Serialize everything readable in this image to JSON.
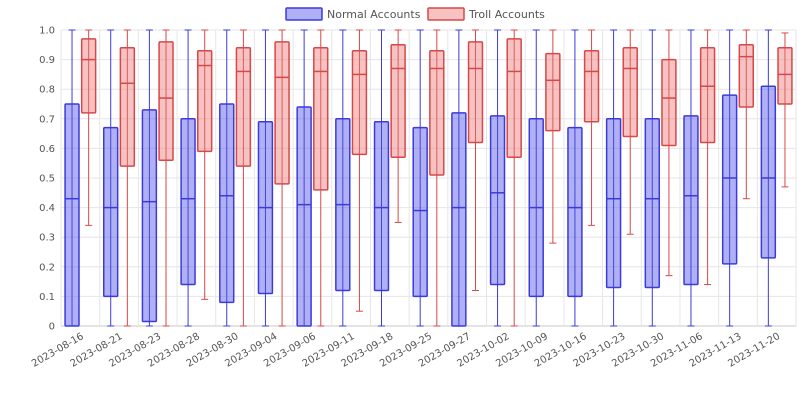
{
  "chart_data": {
    "type": "boxplot",
    "legend_position": "top-center",
    "grid": true,
    "ylim": [
      0,
      1
    ],
    "yticks": [
      "0",
      "0.1",
      "0.2",
      "0.3",
      "0.4",
      "0.5",
      "0.6",
      "0.7",
      "0.8",
      "0.9",
      "1.0"
    ],
    "categories": [
      "2023-08-16",
      "2023-08-21",
      "2023-08-23",
      "2023-08-28",
      "2023-08-30",
      "2023-09-04",
      "2023-09-06",
      "2023-09-11",
      "2023-09-18",
      "2023-09-25",
      "2023-09-27",
      "2023-10-02",
      "2023-10-09",
      "2023-10-16",
      "2023-10-23",
      "2023-10-30",
      "2023-11-06",
      "2023-11-13",
      "2023-11-20"
    ],
    "series": [
      {
        "name": "Normal Accounts",
        "color": "#3b3bdb",
        "fill": "rgba(80,80,230,0.45)",
        "boxes": [
          {
            "min": 0,
            "q1": 0,
            "median": 0.43,
            "q3": 0.75,
            "max": 1.0
          },
          {
            "min": 0,
            "q1": 0.1,
            "median": 0.4,
            "q3": 0.67,
            "max": 1.0
          },
          {
            "min": 0,
            "q1": 0.015,
            "median": 0.42,
            "q3": 0.73,
            "max": 1.0
          },
          {
            "min": 0,
            "q1": 0.14,
            "median": 0.43,
            "q3": 0.7,
            "max": 1.0
          },
          {
            "min": 0,
            "q1": 0.08,
            "median": 0.44,
            "q3": 0.75,
            "max": 1.0
          },
          {
            "min": 0,
            "q1": 0.11,
            "median": 0.4,
            "q3": 0.69,
            "max": 1.0
          },
          {
            "min": 0,
            "q1": 0,
            "median": 0.41,
            "q3": 0.74,
            "max": 1.0
          },
          {
            "min": 0,
            "q1": 0.12,
            "median": 0.41,
            "q3": 0.7,
            "max": 1.0
          },
          {
            "min": 0,
            "q1": 0.12,
            "median": 0.4,
            "q3": 0.69,
            "max": 1.0
          },
          {
            "min": 0,
            "q1": 0.1,
            "median": 0.39,
            "q3": 0.67,
            "max": 1.0
          },
          {
            "min": 0,
            "q1": 0,
            "median": 0.4,
            "q3": 0.72,
            "max": 1.0
          },
          {
            "min": 0,
            "q1": 0.14,
            "median": 0.45,
            "q3": 0.71,
            "max": 1.0
          },
          {
            "min": 0,
            "q1": 0.1,
            "median": 0.4,
            "q3": 0.7,
            "max": 1.0
          },
          {
            "min": 0,
            "q1": 0.1,
            "median": 0.4,
            "q3": 0.67,
            "max": 1.0
          },
          {
            "min": 0,
            "q1": 0.13,
            "median": 0.43,
            "q3": 0.7,
            "max": 1.0
          },
          {
            "min": 0,
            "q1": 0.13,
            "median": 0.43,
            "q3": 0.7,
            "max": 1.0
          },
          {
            "min": 0,
            "q1": 0.14,
            "median": 0.44,
            "q3": 0.71,
            "max": 1.0
          },
          {
            "min": 0,
            "q1": 0.21,
            "median": 0.5,
            "q3": 0.78,
            "max": 1.0
          },
          {
            "min": 0,
            "q1": 0.23,
            "median": 0.5,
            "q3": 0.81,
            "max": 1.0
          }
        ]
      },
      {
        "name": "Troll Accounts",
        "color": "#d84848",
        "fill": "rgba(235,120,120,0.45)",
        "boxes": [
          {
            "min": 0.34,
            "q1": 0.72,
            "median": 0.9,
            "q3": 0.97,
            "max": 1.0
          },
          {
            "min": 0,
            "q1": 0.54,
            "median": 0.82,
            "q3": 0.94,
            "max": 1.0
          },
          {
            "min": 0,
            "q1": 0.56,
            "median": 0.77,
            "q3": 0.96,
            "max": 1.0
          },
          {
            "min": 0.09,
            "q1": 0.59,
            "median": 0.88,
            "q3": 0.93,
            "max": 1.0
          },
          {
            "min": 0,
            "q1": 0.54,
            "median": 0.86,
            "q3": 0.94,
            "max": 1.0
          },
          {
            "min": 0,
            "q1": 0.48,
            "median": 0.84,
            "q3": 0.96,
            "max": 1.0
          },
          {
            "min": 0,
            "q1": 0.46,
            "median": 0.86,
            "q3": 0.94,
            "max": 1.0
          },
          {
            "min": 0.05,
            "q1": 0.58,
            "median": 0.85,
            "q3": 0.93,
            "max": 1.0
          },
          {
            "min": 0.35,
            "q1": 0.57,
            "median": 0.87,
            "q3": 0.95,
            "max": 1.0
          },
          {
            "min": 0,
            "q1": 0.51,
            "median": 0.87,
            "q3": 0.93,
            "max": 1.0
          },
          {
            "min": 0.12,
            "q1": 0.62,
            "median": 0.87,
            "q3": 0.96,
            "max": 1.0
          },
          {
            "min": 0,
            "q1": 0.57,
            "median": 0.86,
            "q3": 0.97,
            "max": 1.0
          },
          {
            "min": 0.28,
            "q1": 0.66,
            "median": 0.83,
            "q3": 0.92,
            "max": 1.0
          },
          {
            "min": 0.34,
            "q1": 0.69,
            "median": 0.86,
            "q3": 0.93,
            "max": 1.0
          },
          {
            "min": 0.31,
            "q1": 0.64,
            "median": 0.87,
            "q3": 0.94,
            "max": 1.0
          },
          {
            "min": 0.17,
            "q1": 0.61,
            "median": 0.77,
            "q3": 0.9,
            "max": 1.0
          },
          {
            "min": 0.14,
            "q1": 0.62,
            "median": 0.81,
            "q3": 0.94,
            "max": 1.0
          },
          {
            "min": 0.43,
            "q1": 0.74,
            "median": 0.91,
            "q3": 0.95,
            "max": 1.0
          },
          {
            "min": 0.47,
            "q1": 0.75,
            "median": 0.85,
            "q3": 0.94,
            "max": 0.99
          }
        ]
      }
    ]
  }
}
